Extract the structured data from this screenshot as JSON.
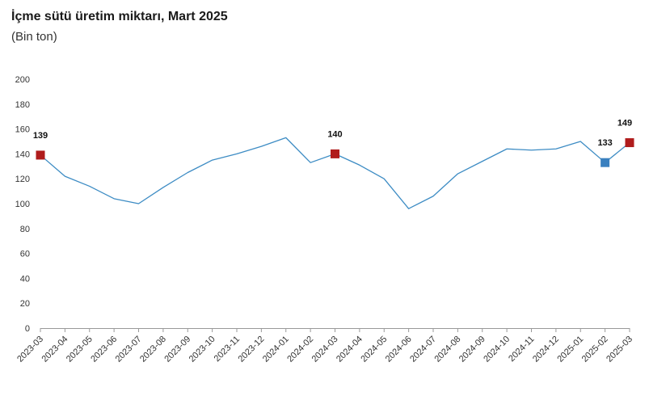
{
  "header": {
    "title": "İçme sütü üretim miktarı, Mart 2025",
    "subtitle": "(Bin ton)"
  },
  "colors": {
    "line": "#3d8cc4",
    "highlight_red": "#b01c1c",
    "highlight_blue": "#3a80bf",
    "axis": "#999999"
  },
  "chart_data": {
    "type": "line",
    "title": "İçme sütü üretim miktarı, Mart 2025",
    "subtitle": "(Bin ton)",
    "xlabel": "",
    "ylabel": "",
    "ylim": [
      0,
      200
    ],
    "yticks": [
      0,
      20,
      40,
      60,
      80,
      100,
      120,
      140,
      160,
      180,
      200
    ],
    "grid": false,
    "legend": "none",
    "categories": [
      "2023-03",
      "2023-04",
      "2023-05",
      "2023-06",
      "2023-07",
      "2023-08",
      "2023-09",
      "2023-10",
      "2023-11",
      "2023-12",
      "2024-01",
      "2024-02",
      "2024-03",
      "2024-04",
      "2024-05",
      "2024-06",
      "2024-07",
      "2024-08",
      "2024-09",
      "2024-10",
      "2024-11",
      "2024-12",
      "2025-01",
      "2025-02",
      "2025-03"
    ],
    "series": [
      {
        "values": [
          139,
          122,
          114,
          104,
          100,
          113,
          125,
          135,
          140,
          146,
          153,
          133,
          140,
          131,
          120,
          96,
          106,
          124,
          134,
          144,
          143,
          144,
          150,
          133,
          149
        ]
      }
    ],
    "highlights": [
      {
        "index": 0,
        "label": "139",
        "color": "#b01c1c"
      },
      {
        "index": 12,
        "label": "140",
        "color": "#b01c1c"
      },
      {
        "index": 23,
        "label": "133",
        "color": "#3a80bf"
      },
      {
        "index": 24,
        "label": "149",
        "color": "#b01c1c"
      }
    ]
  }
}
